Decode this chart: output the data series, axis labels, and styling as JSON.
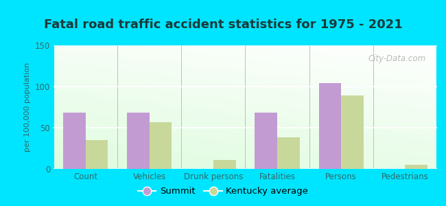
{
  "title": "Fatal road traffic accident statistics for 1975 - 2021",
  "categories": [
    "Count",
    "Vehicles",
    "Drunk persons",
    "Fatalities",
    "Persons",
    "Pedestrians"
  ],
  "summit_values": [
    68,
    68,
    0,
    68,
    104,
    0
  ],
  "ky_avg_values": [
    35,
    57,
    11,
    38,
    89,
    5
  ],
  "summit_color": "#c39bd3",
  "ky_avg_color": "#c8d89a",
  "ylabel": "per 100,000 population",
  "ylim": [
    0,
    150
  ],
  "yticks": [
    0,
    50,
    100,
    150
  ],
  "bar_width": 0.35,
  "background_color_outer": "#00e5ff",
  "legend_labels": [
    "Summit",
    "Kentucky average"
  ],
  "watermark": "City-Data.com",
  "title_fontsize": 13,
  "title_color": "#1a3a3a",
  "axis_label_fontsize": 8,
  "tick_fontsize": 8.5,
  "legend_fontsize": 9.5
}
